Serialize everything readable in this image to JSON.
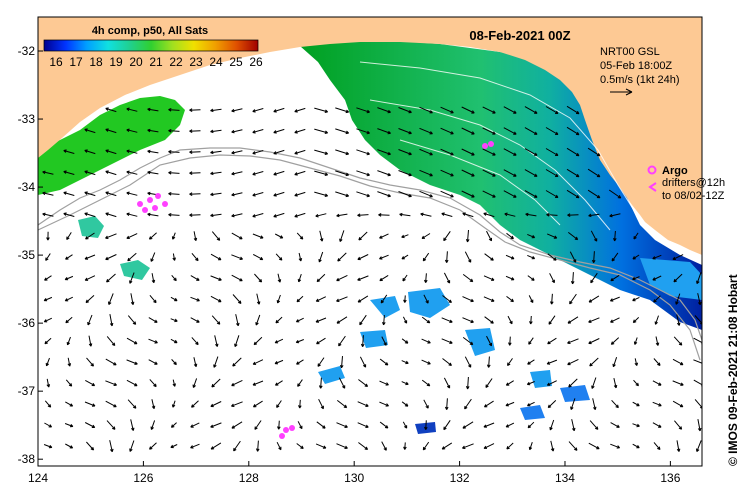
{
  "map": {
    "date_title": "08-Feb-2021 00Z",
    "credit": "© IMOS 09-Feb-2021 21:08 Hobart",
    "colorbar": {
      "title": "4h comp, p50, All Sats",
      "ticks": [
        "16",
        "17",
        "18",
        "19",
        "20",
        "21",
        "22",
        "23",
        "24",
        "25",
        "26"
      ],
      "colors": [
        "#00008f",
        "#0033ff",
        "#00a0ff",
        "#10e0e0",
        "#20d090",
        "#30d030",
        "#a0e020",
        "#f0e000",
        "#f0a000",
        "#e05000",
        "#a00000"
      ]
    },
    "current_info": {
      "source": "NRT00 GSL",
      "time": "05-Feb 18:00Z",
      "scale": "0.5m/s (1kt 24h)"
    },
    "argo_label": "Argo",
    "drifters_line1": "drifters@12h",
    "drifters_line2": "to 08/02-12Z",
    "lon_ticks": [
      "124",
      "126",
      "128",
      "130",
      "132",
      "134",
      "136"
    ],
    "lat_ticks": [
      "-32",
      "-33",
      "-34",
      "-35",
      "-36",
      "-37",
      "-38"
    ],
    "lon_range": [
      124,
      136.6
    ],
    "lat_range": [
      -31.5,
      -38.1
    ],
    "colors": {
      "land": "#fdc994",
      "ocean_cloud": "#ffffff",
      "argo": "#ff40ff",
      "isobath": "#a0a0a0"
    }
  }
}
